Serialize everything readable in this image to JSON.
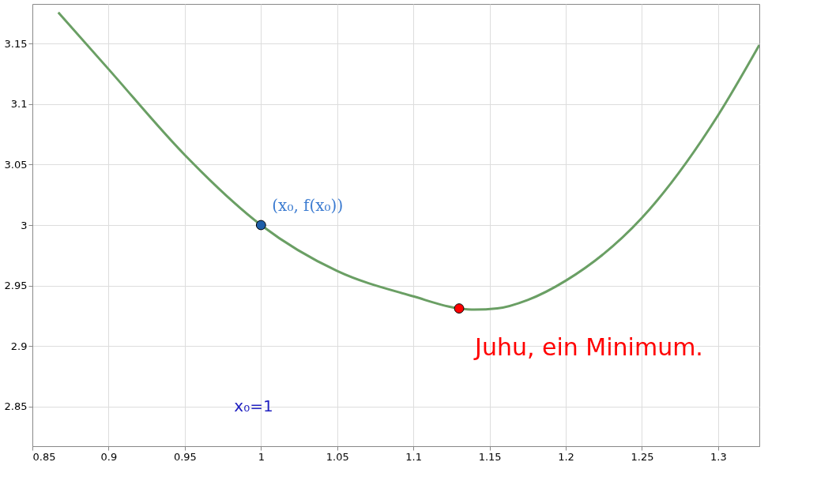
{
  "chart_data": {
    "type": "line",
    "series": [
      {
        "color": "#6a9f64",
        "x": [
          0.867,
          0.9,
          0.95,
          1.0,
          1.05,
          1.1,
          1.13,
          1.14,
          1.155,
          1.175,
          1.2,
          1.25,
          1.3,
          1.327
        ],
        "values": [
          3.176,
          3.129,
          3.058,
          3.0,
          2.962,
          2.941,
          2.931,
          2.93,
          2.931,
          2.938,
          2.954,
          3.006,
          3.091,
          3.149
        ]
      },
      {
        "type": "scatter",
        "color": "#1f5fa8",
        "x": [
          1.0
        ],
        "values": [
          3.0
        ]
      },
      {
        "type": "scatter",
        "color": "#ff0000",
        "x": [
          1.13
        ],
        "values": [
          2.931
        ]
      }
    ],
    "xlim": [
      0.85,
      1.327
    ],
    "ylim": [
      2.817,
      3.183
    ],
    "xticks": [
      0.85,
      0.9,
      0.95,
      1,
      1.05,
      1.1,
      1.15,
      1.2,
      1.25,
      1.3
    ],
    "yticks": [
      2.85,
      2.9,
      2.95,
      3,
      3.05,
      3.1,
      3.15
    ],
    "grid": true,
    "annotations": [
      {
        "text": "(x₀, f(x₀))",
        "x": 1.0,
        "y": 3.0
      },
      {
        "text": "Juhu, ein Minimum.",
        "x": 1.13,
        "y": 2.931
      },
      "x₀=1"
    ]
  }
}
